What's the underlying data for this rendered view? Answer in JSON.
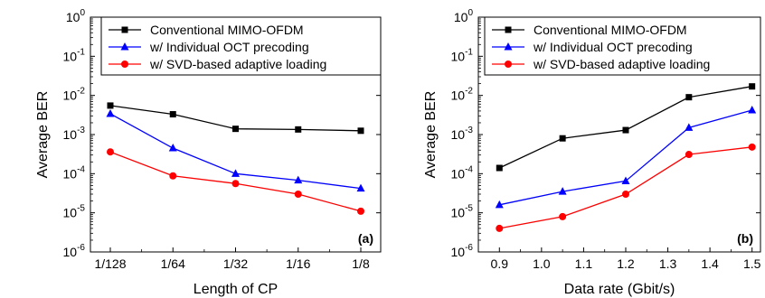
{
  "chart_data": [
    {
      "type": "line",
      "panel_label": "(a)",
      "xlabel": "Length of CP",
      "ylabel": "Average BER",
      "y_scale": "log",
      "ylim": [
        1e-06,
        1
      ],
      "y_ticks": [
        {
          "value": 1.0,
          "base": "10",
          "exp": "0"
        },
        {
          "value": 0.1,
          "base": "10",
          "exp": "-1"
        },
        {
          "value": 0.01,
          "base": "10",
          "exp": "-2"
        },
        {
          "value": 0.001,
          "base": "10",
          "exp": "-3"
        },
        {
          "value": 0.0001,
          "base": "10",
          "exp": "-4"
        },
        {
          "value": 1e-05,
          "base": "10",
          "exp": "-5"
        },
        {
          "value": 1e-06,
          "base": "10",
          "exp": "-6"
        }
      ],
      "categories": [
        "1/128",
        "1/64",
        "1/32",
        "1/16",
        "1/8"
      ],
      "grid": false,
      "legend_position": "top-right",
      "series": [
        {
          "name": "Conventional MIMO-OFDM",
          "color": "#000000",
          "marker": "square",
          "values": [
            0.0055,
            0.0033,
            0.0014,
            0.00135,
            0.00125
          ]
        },
        {
          "name": "w/  Individual OCT precoding",
          "color": "#0000ff",
          "marker": "triangle",
          "values": [
            0.0034,
            0.00045,
            0.0001,
            6.8e-05,
            4.2e-05
          ]
        },
        {
          "name": "w/ SVD-based adaptive loading",
          "color": "#ff0000",
          "marker": "circle",
          "values": [
            0.00036,
            8.8e-05,
            5.6e-05,
            3e-05,
            1.1e-05
          ]
        }
      ]
    },
    {
      "type": "line",
      "panel_label": "(b)",
      "xlabel": "Data rate (Gbit/s)",
      "ylabel": "Average BER",
      "y_scale": "log",
      "ylim": [
        1e-06,
        1
      ],
      "y_ticks": [
        {
          "value": 1.0,
          "base": "10",
          "exp": "0"
        },
        {
          "value": 0.1,
          "base": "10",
          "exp": "-1"
        },
        {
          "value": 0.01,
          "base": "10",
          "exp": "-2"
        },
        {
          "value": 0.001,
          "base": "10",
          "exp": "-3"
        },
        {
          "value": 0.0001,
          "base": "10",
          "exp": "-4"
        },
        {
          "value": 1e-05,
          "base": "10",
          "exp": "-5"
        },
        {
          "value": 1e-06,
          "base": "10",
          "exp": "-6"
        }
      ],
      "xlim": [
        0.85,
        1.52
      ],
      "x_ticks": [
        "0.9",
        "1.0",
        "1.1",
        "1.2",
        "1.3",
        "1.4",
        "1.5"
      ],
      "x": [
        0.9,
        1.05,
        1.2,
        1.35,
        1.5
      ],
      "grid": false,
      "legend_position": "top-right",
      "series": [
        {
          "name": "Conventional MIMO-OFDM",
          "color": "#000000",
          "marker": "square",
          "values": [
            0.00014,
            0.0008,
            0.0013,
            0.009,
            0.017
          ]
        },
        {
          "name": "w/  Individual OCT precoding",
          "color": "#0000ff",
          "marker": "triangle",
          "values": [
            1.6e-05,
            3.5e-05,
            6.5e-05,
            0.0015,
            0.0042
          ]
        },
        {
          "name": "w/ SVD-based adaptive loading",
          "color": "#ff0000",
          "marker": "circle",
          "values": [
            4e-06,
            8e-06,
            3e-05,
            0.00031,
            0.00048
          ]
        }
      ]
    }
  ]
}
